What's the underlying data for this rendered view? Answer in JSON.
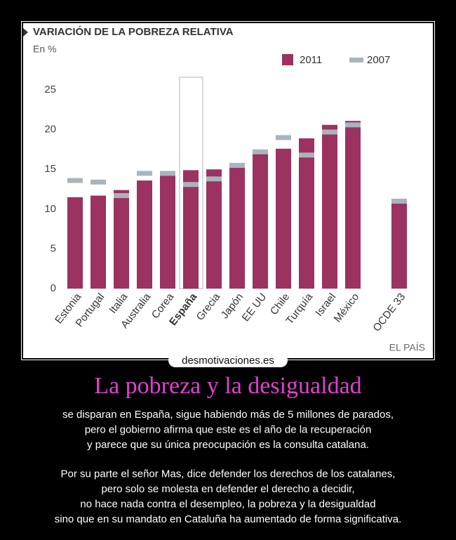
{
  "chart_data": {
    "type": "bar",
    "title": "VARIACIÓN DE LA POBREZA RELATIVA",
    "subtitle": "En %",
    "source": "EL PAÍS",
    "categories": [
      "Estonia",
      "Portugal",
      "Italia",
      "Australia",
      "Corea",
      "España",
      "Grecia",
      "Japón",
      "EE UU",
      "Chile",
      "Turquía",
      "Israel",
      "México",
      "OCDE 33"
    ],
    "series": [
      {
        "name": "2011",
        "color": "#9b3260",
        "style": "bar",
        "values": [
          11.5,
          11.7,
          12.4,
          13.6,
          14.3,
          14.9,
          15.0,
          15.8,
          17.4,
          17.6,
          18.9,
          20.6,
          21.1,
          11.3
        ]
      },
      {
        "name": "2007",
        "color": "#a9b4bc",
        "style": "marker",
        "values": [
          13.6,
          13.4,
          11.7,
          14.5,
          14.5,
          13.1,
          13.8,
          15.5,
          17.2,
          19.0,
          16.8,
          19.7,
          20.6,
          11.0
        ]
      }
    ],
    "ylim": [
      0,
      25
    ],
    "yticks": [
      0,
      5,
      10,
      15,
      20,
      25
    ],
    "grid": false,
    "legend": "top-right",
    "highlight": 5
  },
  "poster": {
    "watermark": "desmotivaciones.es",
    "title": "La pobreza y la desigualdad",
    "paragraphs": [
      [
        "se disparan en España, sigue habiendo más de 5 millones de parados,",
        "pero el gobierno afirma que este es el año de la recuperación",
        "y parece que su única preocupación es la consulta catalana."
      ],
      [
        "Por su parte el señor Mas, dice defender los derechos de los catalanes,",
        "pero solo se molesta en defender el derecho a decidir,",
        "no hace nada contra el desempleo, la pobreza y la desigualdad",
        "sino que en su mandato en Cataluña ha aumentado de forma significativa."
      ]
    ]
  }
}
